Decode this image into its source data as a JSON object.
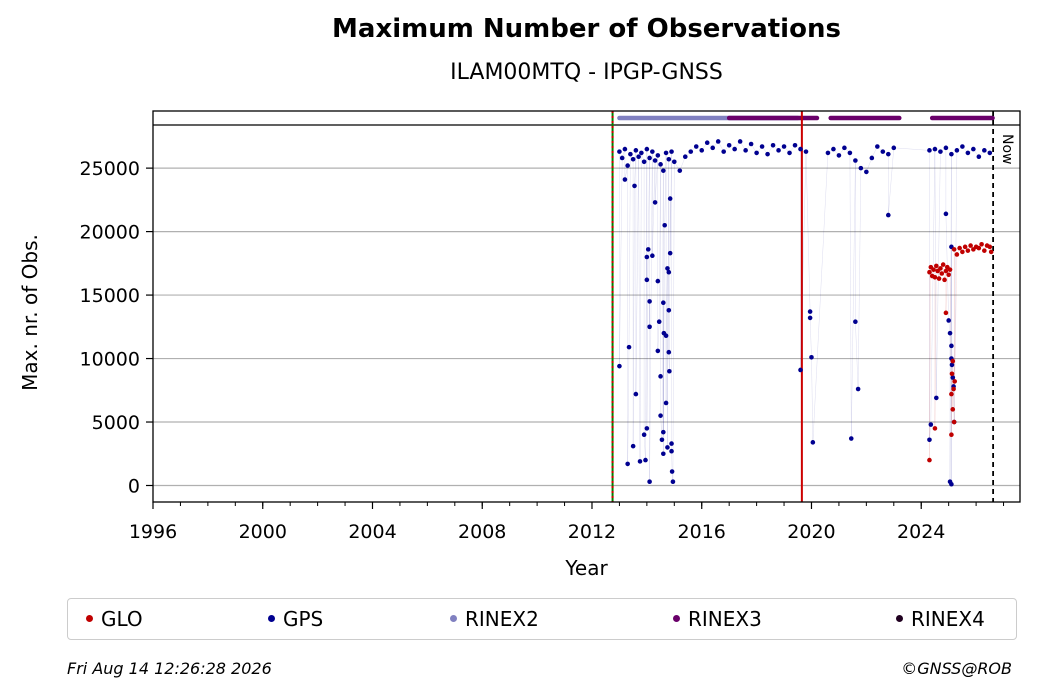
{
  "chart_data": {
    "type": "scatter",
    "title": "Maximum Number of Observations",
    "subtitle": "ILAM00MTQ - IPGP-GNSS",
    "xlabel": "Year",
    "ylabel": "Max. nr. of Obs.",
    "xlim": [
      1996,
      2027.6
    ],
    "ylim": [
      -1300,
      29500
    ],
    "xticks": [
      1996,
      2000,
      2004,
      2008,
      2012,
      2016,
      2020,
      2024
    ],
    "yticks": [
      0,
      5000,
      10000,
      15000,
      20000,
      25000
    ],
    "grid": "horizontal",
    "now_label": "Now",
    "now_x": 2026.62,
    "vlines": [
      {
        "x": 2012.75,
        "color": "#008000",
        "style": "solid"
      },
      {
        "x": 2012.75,
        "color": "#cc0000",
        "style": "dotted"
      },
      {
        "x": 2019.65,
        "color": "#cc0000",
        "style": "solid"
      }
    ],
    "rinex_bars": [
      {
        "name": "RINEX2",
        "color": "#8080c0",
        "ranges": [
          [
            2013.0,
            2019.5
          ]
        ]
      },
      {
        "name": "RINEX3",
        "color": "#6a006a",
        "ranges": [
          [
            2017.0,
            2020.2
          ],
          [
            2020.7,
            2023.2
          ],
          [
            2024.4,
            2026.6
          ]
        ]
      }
    ],
    "series": [
      {
        "name": "GLO",
        "color": "#c00000",
        "points": [
          [
            2024.3,
            16800
          ],
          [
            2024.35,
            17200
          ],
          [
            2024.4,
            16500
          ],
          [
            2024.45,
            17000
          ],
          [
            2024.5,
            16400
          ],
          [
            2024.55,
            17300
          ],
          [
            2024.6,
            16900
          ],
          [
            2024.65,
            16300
          ],
          [
            2024.7,
            17100
          ],
          [
            2024.75,
            16700
          ],
          [
            2024.8,
            17400
          ],
          [
            2024.85,
            16200
          ],
          [
            2024.9,
            16900
          ],
          [
            2024.95,
            17200
          ],
          [
            2025.0,
            16600
          ],
          [
            2025.05,
            17000
          ],
          [
            2024.3,
            2000
          ],
          [
            2024.5,
            4500
          ],
          [
            2024.9,
            13600
          ],
          [
            2025.1,
            7200
          ],
          [
            2025.12,
            8800
          ],
          [
            2025.15,
            6000
          ],
          [
            2025.18,
            7600
          ],
          [
            2025.2,
            5000
          ],
          [
            2025.22,
            8200
          ],
          [
            2025.1,
            4000
          ],
          [
            2025.15,
            9800
          ],
          [
            2025.2,
            18600
          ],
          [
            2025.3,
            18200
          ],
          [
            2025.4,
            18700
          ],
          [
            2025.5,
            18400
          ],
          [
            2025.6,
            18800
          ],
          [
            2025.7,
            18500
          ],
          [
            2025.8,
            18900
          ],
          [
            2025.9,
            18600
          ],
          [
            2026.0,
            18800
          ],
          [
            2026.1,
            18700
          ],
          [
            2026.2,
            19000
          ],
          [
            2026.3,
            18500
          ],
          [
            2026.4,
            18900
          ],
          [
            2026.5,
            18800
          ],
          [
            2026.55,
            18400
          ]
        ]
      },
      {
        "name": "GPS",
        "color": "#000090",
        "points": [
          [
            2013.0,
            26300
          ],
          [
            2013.1,
            25800
          ],
          [
            2013.2,
            26500
          ],
          [
            2013.3,
            25200
          ],
          [
            2013.4,
            26100
          ],
          [
            2013.5,
            25700
          ],
          [
            2013.6,
            26400
          ],
          [
            2013.7,
            25900
          ],
          [
            2013.8,
            26200
          ],
          [
            2013.9,
            25500
          ],
          [
            2014.0,
            26500
          ],
          [
            2014.1,
            25800
          ],
          [
            2014.2,
            26300
          ],
          [
            2014.3,
            25600
          ],
          [
            2014.4,
            26000
          ],
          [
            2014.5,
            25300
          ],
          [
            2014.6,
            24800
          ],
          [
            2014.7,
            26200
          ],
          [
            2014.8,
            25700
          ],
          [
            2014.9,
            26300
          ],
          [
            2015.0,
            25500
          ],
          [
            2015.2,
            24800
          ],
          [
            2015.4,
            25900
          ],
          [
            2015.6,
            26300
          ],
          [
            2015.8,
            26700
          ],
          [
            2016.0,
            26400
          ],
          [
            2016.2,
            27000
          ],
          [
            2016.4,
            26600
          ],
          [
            2016.6,
            27100
          ],
          [
            2016.8,
            26300
          ],
          [
            2017.0,
            26800
          ],
          [
            2017.2,
            26500
          ],
          [
            2017.4,
            27100
          ],
          [
            2017.6,
            26400
          ],
          [
            2017.8,
            26900
          ],
          [
            2018.0,
            26200
          ],
          [
            2018.2,
            26700
          ],
          [
            2018.4,
            26100
          ],
          [
            2018.6,
            26800
          ],
          [
            2018.8,
            26400
          ],
          [
            2019.0,
            26700
          ],
          [
            2019.2,
            26200
          ],
          [
            2019.4,
            26800
          ],
          [
            2019.6,
            26500
          ],
          [
            2019.8,
            26300
          ],
          [
            2020.6,
            26200
          ],
          [
            2020.8,
            26500
          ],
          [
            2021.0,
            26000
          ],
          [
            2021.2,
            26600
          ],
          [
            2021.4,
            26200
          ],
          [
            2021.6,
            25600
          ],
          [
            2021.8,
            25000
          ],
          [
            2022.0,
            24700
          ],
          [
            2022.2,
            25800
          ],
          [
            2022.4,
            26700
          ],
          [
            2022.6,
            26300
          ],
          [
            2022.8,
            26100
          ],
          [
            2023.0,
            26600
          ],
          [
            2024.3,
            26400
          ],
          [
            2024.5,
            26500
          ],
          [
            2024.7,
            26300
          ],
          [
            2024.9,
            26600
          ],
          [
            2025.1,
            26100
          ],
          [
            2025.3,
            26400
          ],
          [
            2025.5,
            26700
          ],
          [
            2025.7,
            26200
          ],
          [
            2025.9,
            26500
          ],
          [
            2026.1,
            25900
          ],
          [
            2026.3,
            26400
          ],
          [
            2026.5,
            26200
          ],
          [
            2013.0,
            9400
          ],
          [
            2013.2,
            24100
          ],
          [
            2013.3,
            1700
          ],
          [
            2013.35,
            10900
          ],
          [
            2013.5,
            3100
          ],
          [
            2013.6,
            7200
          ],
          [
            2013.55,
            23600
          ],
          [
            2013.9,
            4000
          ],
          [
            2013.95,
            2000
          ],
          [
            2014.0,
            16200
          ],
          [
            2014.0,
            18000
          ],
          [
            2014.05,
            18600
          ],
          [
            2014.1,
            12500
          ],
          [
            2014.1,
            14500
          ],
          [
            2014.2,
            18100
          ],
          [
            2014.3,
            22300
          ],
          [
            2014.4,
            16100
          ],
          [
            2014.4,
            10600
          ],
          [
            2014.45,
            12900
          ],
          [
            2014.5,
            8600
          ],
          [
            2014.5,
            5500
          ],
          [
            2014.55,
            3600
          ],
          [
            2014.6,
            4200
          ],
          [
            2014.6,
            14400
          ],
          [
            2014.62,
            12000
          ],
          [
            2014.65,
            20500
          ],
          [
            2014.7,
            6500
          ],
          [
            2014.7,
            11800
          ],
          [
            2014.75,
            17100
          ],
          [
            2014.75,
            3000
          ],
          [
            2014.8,
            16800
          ],
          [
            2014.8,
            13800
          ],
          [
            2014.8,
            10500
          ],
          [
            2014.82,
            9000
          ],
          [
            2014.85,
            22600
          ],
          [
            2014.85,
            18300
          ],
          [
            2014.9,
            3300
          ],
          [
            2014.9,
            2700
          ],
          [
            2014.92,
            1100
          ],
          [
            2014.95,
            300
          ],
          [
            2014.1,
            300
          ],
          [
            2014.0,
            4500
          ],
          [
            2014.6,
            2500
          ],
          [
            2013.75,
            1900
          ],
          [
            2019.6,
            9100
          ],
          [
            2019.95,
            13700
          ],
          [
            2019.95,
            13200
          ],
          [
            2020.0,
            10100
          ],
          [
            2020.05,
            3400
          ],
          [
            2021.45,
            3700
          ],
          [
            2021.6,
            12900
          ],
          [
            2021.7,
            7600
          ],
          [
            2022.8,
            21300
          ],
          [
            2024.35,
            4800
          ],
          [
            2024.3,
            3600
          ],
          [
            2024.55,
            6900
          ],
          [
            2024.9,
            21400
          ],
          [
            2025.0,
            13000
          ],
          [
            2025.05,
            12000
          ],
          [
            2025.1,
            11000
          ],
          [
            2025.1,
            10000
          ],
          [
            2025.12,
            9500
          ],
          [
            2025.15,
            8500
          ],
          [
            2025.18,
            7800
          ],
          [
            2025.2,
            5000
          ],
          [
            2025.05,
            300
          ],
          [
            2025.1,
            100
          ],
          [
            2025.1,
            18800
          ]
        ]
      }
    ],
    "legend": [
      {
        "label": "GLO",
        "color": "#c00000"
      },
      {
        "label": "GPS",
        "color": "#000090"
      },
      {
        "label": "RINEX2",
        "color": "#8080c0"
      },
      {
        "label": "RINEX3",
        "color": "#6a006a"
      },
      {
        "label": "RINEX4",
        "color": "#200020"
      }
    ]
  },
  "footer": {
    "timestamp": "Fri Aug 14 12:26:28 2026",
    "copyright": "©GNSS@ROB"
  }
}
